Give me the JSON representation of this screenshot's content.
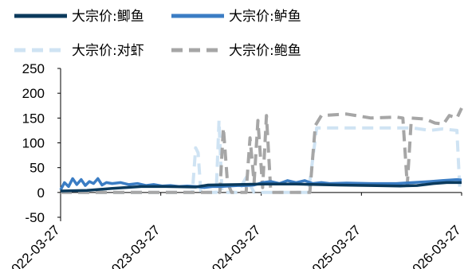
{
  "chart_data": {
    "type": "line",
    "title": "",
    "xlabel": "",
    "ylabel": "",
    "ylim": [
      -50,
      250
    ],
    "yticks": [
      "250",
      "200",
      "150",
      "100",
      "50",
      "0",
      "-50"
    ],
    "xlim": [
      "2022-03-27",
      "2026-03-27"
    ],
    "xticks": [
      "2022-03-27",
      "2023-03-27",
      "2024-03-27",
      "2025-03-27",
      "2026-03-27"
    ],
    "grid": false,
    "legend_position": "top",
    "series": [
      {
        "name": "大宗价:鲫鱼",
        "color": "#0b3a5c",
        "style": "solid",
        "points": [
          [
            "2022-03-27",
            3
          ],
          [
            "2022-07-01",
            4
          ],
          [
            "2022-10-01",
            8
          ],
          [
            "2023-01-15",
            12
          ],
          [
            "2023-04-15",
            12
          ],
          [
            "2023-08-01",
            11
          ],
          [
            "2023-09-15",
            15
          ],
          [
            "2024-01-01",
            16
          ],
          [
            "2024-04-01",
            17
          ],
          [
            "2024-08-01",
            17
          ],
          [
            "2024-10-15",
            16
          ],
          [
            "2025-01-01",
            15
          ],
          [
            "2025-05-01",
            14
          ],
          [
            "2025-08-15",
            13
          ],
          [
            "2025-10-15",
            14
          ],
          [
            "2025-12-15",
            18
          ],
          [
            "2026-02-01",
            20
          ],
          [
            "2026-03-27",
            20
          ]
        ]
      },
      {
        "name": "大宗价:鲈鱼",
        "color": "#3b7dc4",
        "style": "solid",
        "points": [
          [
            "2022-03-27",
            5
          ],
          [
            "2022-04-10",
            20
          ],
          [
            "2022-04-25",
            12
          ],
          [
            "2022-05-10",
            28
          ],
          [
            "2022-05-25",
            16
          ],
          [
            "2022-06-10",
            26
          ],
          [
            "2022-06-25",
            14
          ],
          [
            "2022-07-10",
            22
          ],
          [
            "2022-07-25",
            18
          ],
          [
            "2022-08-10",
            28
          ],
          [
            "2022-08-25",
            15
          ],
          [
            "2022-09-10",
            20
          ],
          [
            "2022-10-01",
            18
          ],
          [
            "2022-11-01",
            20
          ],
          [
            "2022-12-01",
            16
          ],
          [
            "2023-01-01",
            18
          ],
          [
            "2023-02-01",
            14
          ],
          [
            "2023-03-01",
            16
          ],
          [
            "2023-04-01",
            13
          ],
          [
            "2023-05-01",
            14
          ],
          [
            "2023-06-01",
            12
          ],
          [
            "2023-07-01",
            13
          ],
          [
            "2023-08-01",
            12
          ],
          [
            "2023-09-01",
            10
          ],
          [
            "2023-10-01",
            12
          ],
          [
            "2023-11-01",
            12
          ],
          [
            "2023-12-01",
            13
          ],
          [
            "2024-01-01",
            14
          ],
          [
            "2024-02-01",
            14
          ],
          [
            "2024-03-01",
            15
          ],
          [
            "2024-04-01",
            20
          ],
          [
            "2024-05-01",
            22
          ],
          [
            "2024-06-01",
            18
          ],
          [
            "2024-07-01",
            24
          ],
          [
            "2024-08-01",
            20
          ],
          [
            "2024-09-01",
            24
          ],
          [
            "2024-10-01",
            18
          ],
          [
            "2024-11-01",
            20
          ],
          [
            "2024-12-01",
            18
          ],
          [
            "2025-02-01",
            19
          ],
          [
            "2025-05-01",
            18
          ],
          [
            "2025-08-01",
            18
          ],
          [
            "2025-10-01",
            20
          ],
          [
            "2025-12-01",
            22
          ],
          [
            "2026-01-15",
            24
          ],
          [
            "2026-03-10",
            26
          ],
          [
            "2026-03-27",
            25
          ]
        ]
      },
      {
        "name": "大宗价:对虾",
        "color": "#cfe3f3",
        "style": "dashed",
        "points": [
          [
            "2022-03-27",
            0
          ],
          [
            "2023-06-01",
            0
          ],
          [
            "2023-07-20",
            0
          ],
          [
            "2023-08-01",
            90
          ],
          [
            "2023-08-10",
            80
          ],
          [
            "2023-08-20",
            0
          ],
          [
            "2023-10-15",
            0
          ],
          [
            "2023-10-25",
            145
          ],
          [
            "2023-11-05",
            0
          ],
          [
            "2023-12-15",
            0
          ],
          [
            "2024-01-01",
            0
          ],
          [
            "2024-02-01",
            30
          ],
          [
            "2024-03-01",
            0
          ],
          [
            "2024-05-01",
            0
          ],
          [
            "2024-07-01",
            0
          ],
          [
            "2024-09-15",
            0
          ],
          [
            "2024-10-15",
            130
          ],
          [
            "2025-06-01",
            130
          ],
          [
            "2025-10-01",
            130
          ],
          [
            "2025-12-01",
            125
          ],
          [
            "2026-01-15",
            128
          ],
          [
            "2026-03-10",
            125
          ],
          [
            "2026-03-20",
            10
          ],
          [
            "2026-03-27",
            10
          ]
        ]
      },
      {
        "name": "大宗价:鲍鱼",
        "color": "#a6a6a6",
        "style": "dashed",
        "points": [
          [
            "2022-03-27",
            0
          ],
          [
            "2023-10-15",
            0
          ],
          [
            "2023-10-28",
            0
          ],
          [
            "2023-11-10",
            130
          ],
          [
            "2023-11-25",
            20
          ],
          [
            "2023-12-10",
            0
          ],
          [
            "2024-02-01",
            0
          ],
          [
            "2024-02-15",
            110
          ],
          [
            "2024-03-01",
            20
          ],
          [
            "2024-03-15",
            145
          ],
          [
            "2024-04-01",
            10
          ],
          [
            "2024-04-15",
            155
          ],
          [
            "2024-05-01",
            0
          ],
          [
            "2024-09-01",
            0
          ],
          [
            "2024-09-20",
            0
          ],
          [
            "2024-10-10",
            135
          ],
          [
            "2024-11-01",
            155
          ],
          [
            "2025-02-01",
            158
          ],
          [
            "2025-05-01",
            150
          ],
          [
            "2025-08-01",
            152
          ],
          [
            "2025-08-25",
            150
          ],
          [
            "2025-09-10",
            15
          ],
          [
            "2025-09-25",
            150
          ],
          [
            "2025-11-15",
            148
          ],
          [
            "2025-12-20",
            140
          ],
          [
            "2026-01-20",
            138
          ],
          [
            "2026-02-10",
            155
          ],
          [
            "2026-03-10",
            150
          ],
          [
            "2026-03-27",
            170
          ]
        ]
      }
    ]
  }
}
